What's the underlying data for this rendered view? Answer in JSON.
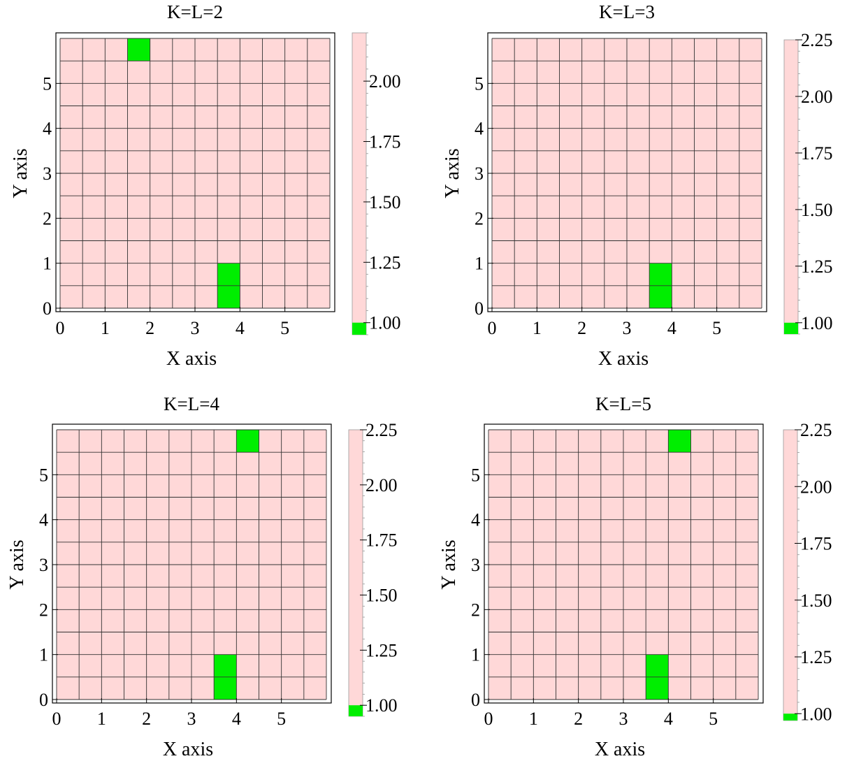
{
  "colors": {
    "low": "#00ee00",
    "high": "#ffd8d8",
    "grid": "#333333",
    "frame": "#000000"
  },
  "chart_data": [
    {
      "type": "heatmap",
      "title": "K=L=2",
      "xlabel": "X axis",
      "ylabel": "Y axis",
      "xlim": [
        0,
        6
      ],
      "ylim": [
        0,
        6
      ],
      "cell_size": 0.5,
      "x_ticks": [
        "0",
        "1",
        "2",
        "3",
        "4",
        "5"
      ],
      "y_ticks": [
        "0",
        "1",
        "2",
        "3",
        "4",
        "5"
      ],
      "colorbar": {
        "range": [
          0.95,
          2.2
        ],
        "ticks": [
          "1.00",
          "1.25",
          "1.50",
          "1.75",
          "2.00"
        ],
        "low_band_top": 1.0
      },
      "default_value": 2.2,
      "highlighted_cells": [
        {
          "x": [
            1.5,
            2.0
          ],
          "y": [
            5.5,
            6.0
          ],
          "value": 1.0
        },
        {
          "x": [
            3.5,
            4.0
          ],
          "y": [
            0.0,
            1.0
          ],
          "value": 1.0
        }
      ]
    },
    {
      "type": "heatmap",
      "title": "K=L=3",
      "xlabel": "X axis",
      "ylabel": "Y axis",
      "xlim": [
        0,
        6
      ],
      "ylim": [
        0,
        6
      ],
      "cell_size": 0.5,
      "x_ticks": [
        "0",
        "1",
        "2",
        "3",
        "4",
        "5"
      ],
      "y_ticks": [
        "0",
        "1",
        "2",
        "3",
        "4",
        "5"
      ],
      "colorbar": {
        "range": [
          0.95,
          2.25
        ],
        "ticks": [
          "1.00",
          "1.25",
          "1.50",
          "1.75",
          "2.00",
          "2.25"
        ],
        "low_band_top": 1.0
      },
      "default_value": 2.25,
      "highlighted_cells": [
        {
          "x": [
            3.5,
            4.0
          ],
          "y": [
            0.0,
            1.0
          ],
          "value": 1.0
        }
      ]
    },
    {
      "type": "heatmap",
      "title": "K=L=4",
      "xlabel": "X axis",
      "ylabel": "Y axis",
      "xlim": [
        0,
        6
      ],
      "ylim": [
        0,
        6
      ],
      "cell_size": 0.5,
      "x_ticks": [
        "0",
        "1",
        "2",
        "3",
        "4",
        "5"
      ],
      "y_ticks": [
        "0",
        "1",
        "2",
        "3",
        "4",
        "5"
      ],
      "colorbar": {
        "range": [
          0.95,
          2.25
        ],
        "ticks": [
          "1.00",
          "1.25",
          "1.50",
          "1.75",
          "2.00",
          "2.25"
        ],
        "low_band_top": 1.0
      },
      "default_value": 2.25,
      "highlighted_cells": [
        {
          "x": [
            4.0,
            4.5
          ],
          "y": [
            5.5,
            6.0
          ],
          "value": 1.0
        },
        {
          "x": [
            3.5,
            4.0
          ],
          "y": [
            0.0,
            1.0
          ],
          "value": 1.0
        }
      ]
    },
    {
      "type": "heatmap",
      "title": "K=L=5",
      "xlabel": "X axis",
      "ylabel": "Y axis",
      "xlim": [
        0,
        6
      ],
      "ylim": [
        0,
        6
      ],
      "cell_size": 0.5,
      "x_ticks": [
        "0",
        "1",
        "2",
        "3",
        "4",
        "5"
      ],
      "y_ticks": [
        "0",
        "1",
        "2",
        "3",
        "4",
        "5"
      ],
      "colorbar": {
        "range": [
          0.97,
          2.25
        ],
        "ticks": [
          "1.00",
          "1.25",
          "1.50",
          "1.75",
          "2.00",
          "2.25"
        ],
        "low_band_top": 1.0
      },
      "default_value": 2.25,
      "highlighted_cells": [
        {
          "x": [
            4.0,
            4.5
          ],
          "y": [
            5.5,
            6.0
          ],
          "value": 1.0
        },
        {
          "x": [
            3.5,
            4.0
          ],
          "y": [
            0.0,
            1.0
          ],
          "value": 1.0
        }
      ]
    }
  ]
}
